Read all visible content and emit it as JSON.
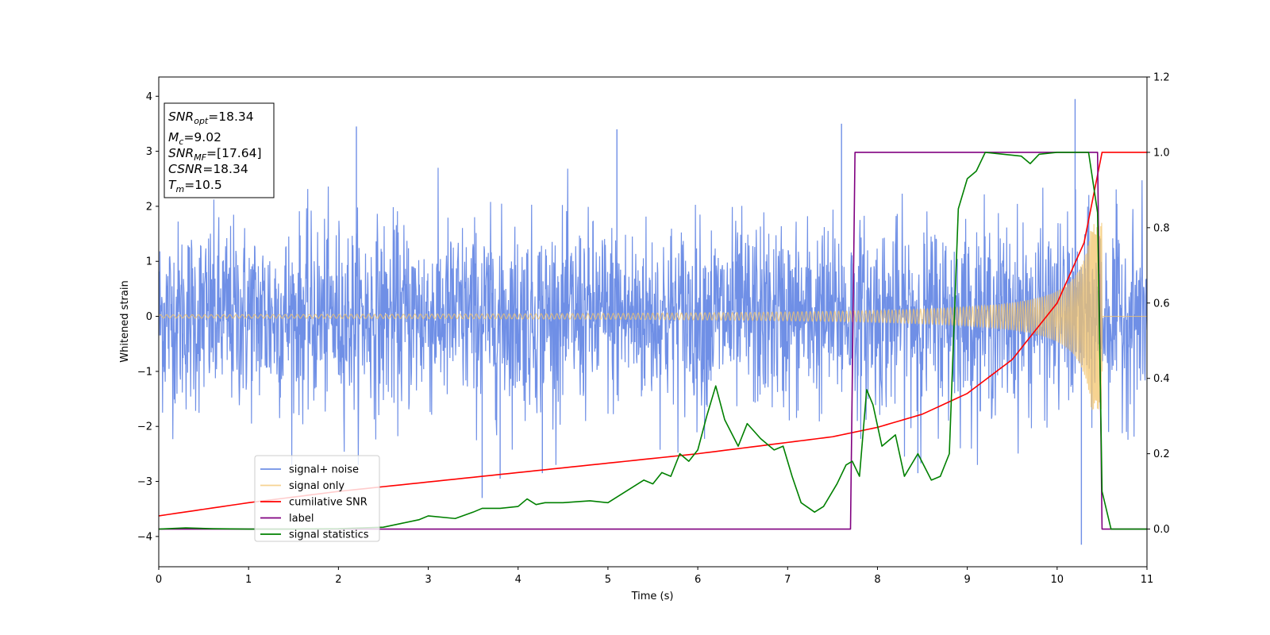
{
  "chart_data": {
    "type": "line",
    "title": "",
    "xlabel": "Time (s)",
    "ylabel": "Whitened strain",
    "xlim": [
      0,
      11
    ],
    "ylim": [
      -4.55,
      4.35
    ],
    "ylim_right": [
      -0.1,
      1.2
    ],
    "x_ticks": [
      "0",
      "1",
      "2",
      "3",
      "4",
      "5",
      "6",
      "7",
      "8",
      "9",
      "10",
      "11"
    ],
    "y_ticks": [
      "−4",
      "−3",
      "−2",
      "−1",
      "0",
      "1",
      "2",
      "3",
      "4"
    ],
    "y_right_ticks": [
      "0.0",
      "0.2",
      "0.4",
      "0.6",
      "0.8",
      "1.0",
      "1.2"
    ],
    "grid": false,
    "legend_position": "lower-left",
    "info_box": {
      "snr_opt": "=18.34",
      "mc": "=9.02",
      "snr_mf": "=[17.64]",
      "csnr": "=18.34",
      "tm": "=10.5"
    },
    "series": [
      {
        "name": "signal+ noise",
        "axis": "left",
        "color": "#6f8fe6",
        "description_values": {
          "std": 0.85,
          "noise_max": 3.95,
          "noise_min": -4.15,
          "spikes": [
            [
              2.2,
              3.45
            ],
            [
              5.1,
              3.4
            ],
            [
              7.6,
              3.5
            ],
            [
              10.2,
              3.95
            ],
            [
              10.27,
              -4.15
            ],
            [
              3.6,
              -3.3
            ],
            [
              4.27,
              -2.85
            ],
            [
              8.45,
              -2.85
            ],
            [
              3.8,
              -2.95
            ]
          ]
        }
      },
      {
        "name": "signal only",
        "axis": "left",
        "color": "#f3c46c",
        "chirp": {
          "t_merge": 10.5,
          "amp_start": 0.03,
          "amp_end": 1.7,
          "freq_start": 14,
          "freq_end": 95
        }
      },
      {
        "name": "cumilative SNR",
        "axis": "right",
        "color": "#ff0000",
        "x": [
          0,
          1,
          2,
          3,
          4,
          5,
          6,
          7,
          7.5,
          8,
          8.5,
          9,
          9.5,
          10,
          10.3,
          10.5,
          11
        ],
        "y": [
          0.035,
          0.07,
          0.1,
          0.125,
          0.15,
          0.175,
          0.2,
          0.23,
          0.245,
          0.27,
          0.305,
          0.36,
          0.45,
          0.6,
          0.76,
          1.0,
          1.0
        ]
      },
      {
        "name": "label",
        "axis": "right",
        "color": "#800080",
        "x": [
          0,
          7.7,
          7.75,
          10.45,
          10.5,
          11
        ],
        "y": [
          0,
          0,
          1,
          1,
          0,
          0
        ]
      },
      {
        "name": "signal statistics",
        "axis": "right",
        "color": "#008000",
        "x": [
          0,
          0.3,
          0.6,
          1.0,
          1.5,
          2.0,
          2.5,
          2.7,
          2.9,
          3.0,
          3.3,
          3.5,
          3.6,
          3.8,
          4.0,
          4.1,
          4.2,
          4.3,
          4.5,
          4.8,
          5.0,
          5.2,
          5.4,
          5.5,
          5.6,
          5.7,
          5.8,
          5.9,
          6.0,
          6.1,
          6.2,
          6.3,
          6.45,
          6.55,
          6.7,
          6.85,
          6.95,
          7.05,
          7.15,
          7.3,
          7.4,
          7.55,
          7.65,
          7.72,
          7.8,
          7.88,
          7.95,
          8.05,
          8.2,
          8.3,
          8.45,
          8.6,
          8.7,
          8.8,
          8.9,
          9.0,
          9.1,
          9.2,
          9.4,
          9.6,
          9.7,
          9.8,
          10.0,
          10.2,
          10.35,
          10.45,
          10.5,
          10.6,
          11
        ],
        "y": [
          0.0,
          0.003,
          0.001,
          0.0,
          0.0,
          0.001,
          0.005,
          0.015,
          0.025,
          0.035,
          0.028,
          0.045,
          0.055,
          0.055,
          0.06,
          0.08,
          0.065,
          0.07,
          0.07,
          0.075,
          0.07,
          0.1,
          0.13,
          0.12,
          0.15,
          0.14,
          0.2,
          0.18,
          0.21,
          0.3,
          0.38,
          0.29,
          0.22,
          0.28,
          0.24,
          0.21,
          0.22,
          0.14,
          0.07,
          0.045,
          0.06,
          0.12,
          0.17,
          0.18,
          0.14,
          0.37,
          0.33,
          0.22,
          0.25,
          0.14,
          0.2,
          0.13,
          0.14,
          0.2,
          0.85,
          0.93,
          0.95,
          1.0,
          0.995,
          0.99,
          0.97,
          0.995,
          1.0,
          1.0,
          1.0,
          0.84,
          0.1,
          0.0,
          0.0
        ]
      }
    ]
  }
}
